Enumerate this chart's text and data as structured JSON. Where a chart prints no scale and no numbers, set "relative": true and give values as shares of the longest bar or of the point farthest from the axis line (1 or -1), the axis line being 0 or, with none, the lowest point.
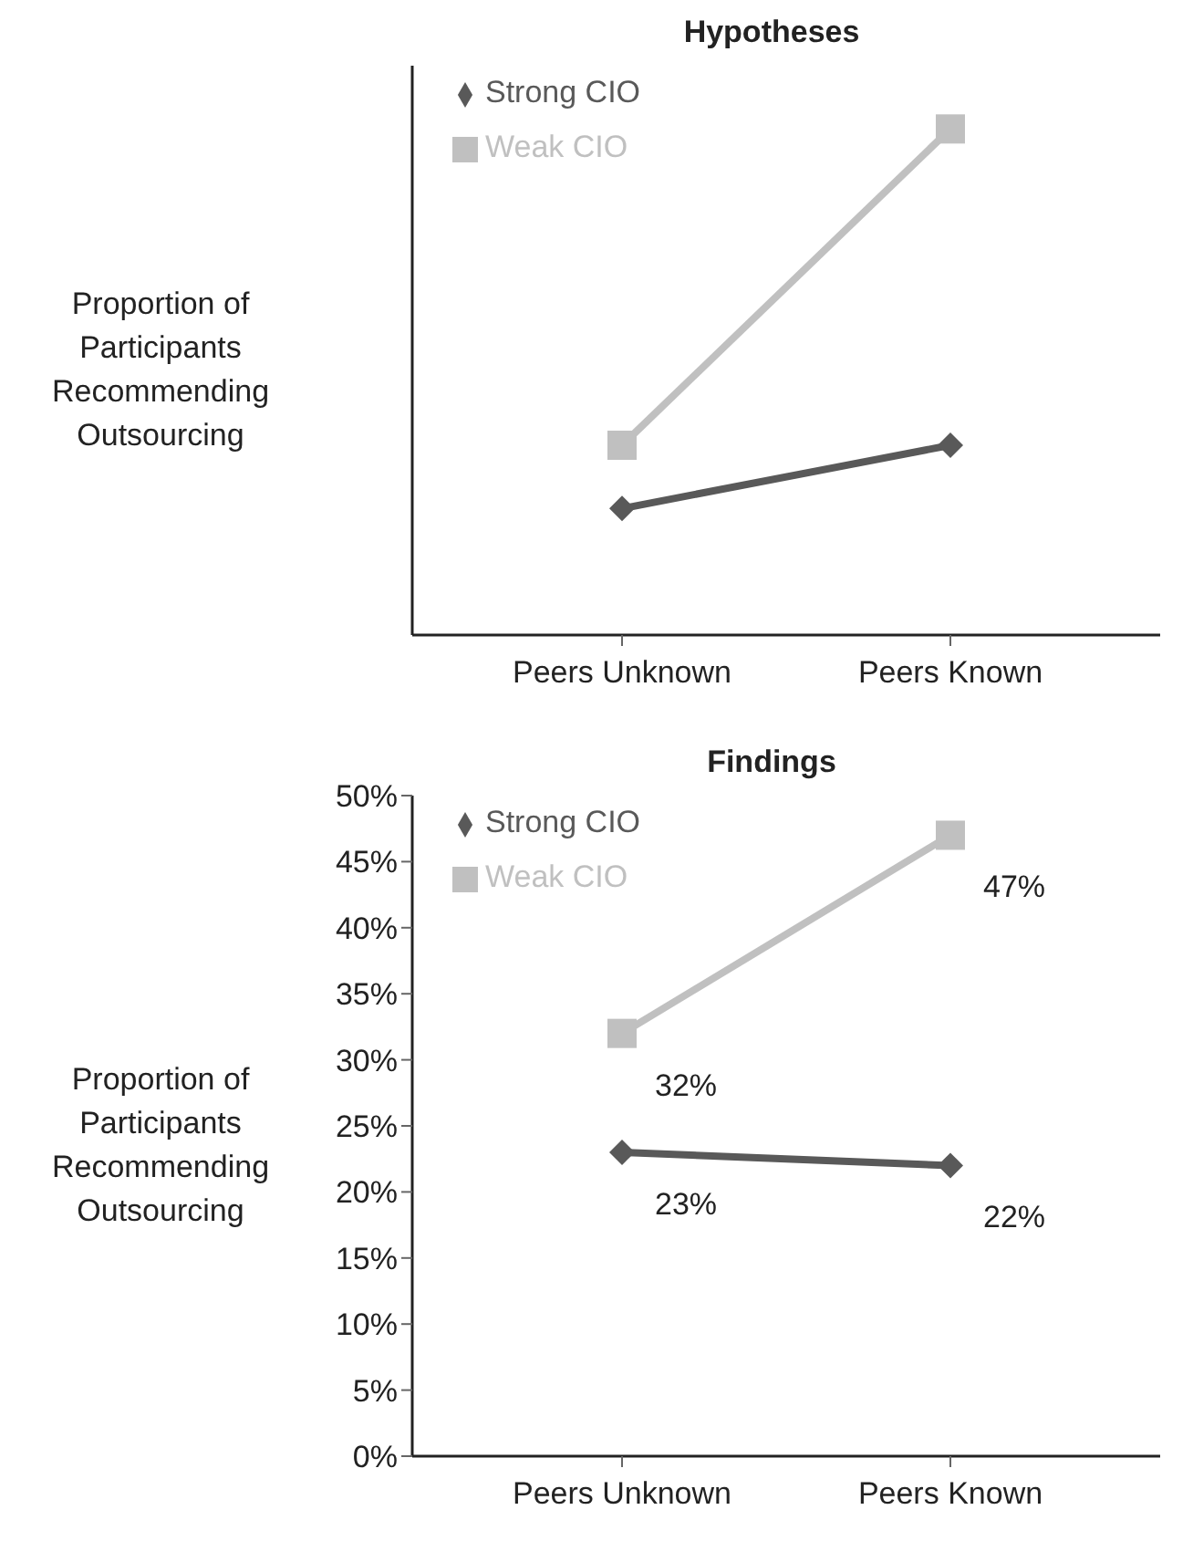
{
  "chart_data": [
    {
      "type": "line",
      "title": "Hypotheses",
      "ylabel": "Proportion of Participants Recommending Outsourcing",
      "categories": [
        "Peers Unknown",
        "Peers Known"
      ],
      "relative": true,
      "legend": "top left",
      "grid": false,
      "tick_labels": "x",
      "series": [
        {
          "name": "Strong CIO",
          "color": "#595959",
          "marker": "diamond",
          "values": [
            0.25,
            0.375
          ]
        },
        {
          "name": "Weak CIO",
          "color": "#c0c0c0",
          "marker": "square",
          "values": [
            0.375,
            1
          ]
        }
      ]
    },
    {
      "type": "line",
      "title": "Findings",
      "ylabel": "Proportion of Participants Recommending Outsourcing",
      "categories": [
        "Peers Unknown",
        "Peers Known"
      ],
      "ylim": [
        0,
        50
      ],
      "yticks": [
        {
          "value": 0,
          "label": "0%"
        },
        {
          "value": 5,
          "label": "5%"
        },
        {
          "value": 10,
          "label": "10%"
        },
        {
          "value": 15,
          "label": "15%"
        },
        {
          "value": 20,
          "label": "20%"
        },
        {
          "value": 25,
          "label": "25%"
        },
        {
          "value": 30,
          "label": "30%"
        },
        {
          "value": 35,
          "label": "35%"
        },
        {
          "value": 40,
          "label": "40%"
        },
        {
          "value": 45,
          "label": "45%"
        },
        {
          "value": 50,
          "label": "50%"
        }
      ],
      "legend": "top left",
      "grid": false,
      "series": [
        {
          "name": "Strong CIO",
          "color": "#595959",
          "marker": "diamond",
          "values": [
            23,
            22
          ],
          "value_labels": [
            "23%",
            "22%"
          ]
        },
        {
          "name": "Weak CIO",
          "color": "#c0c0c0",
          "marker": "square",
          "values": [
            32,
            47
          ],
          "value_labels": [
            "32%",
            "47%"
          ]
        }
      ]
    }
  ]
}
